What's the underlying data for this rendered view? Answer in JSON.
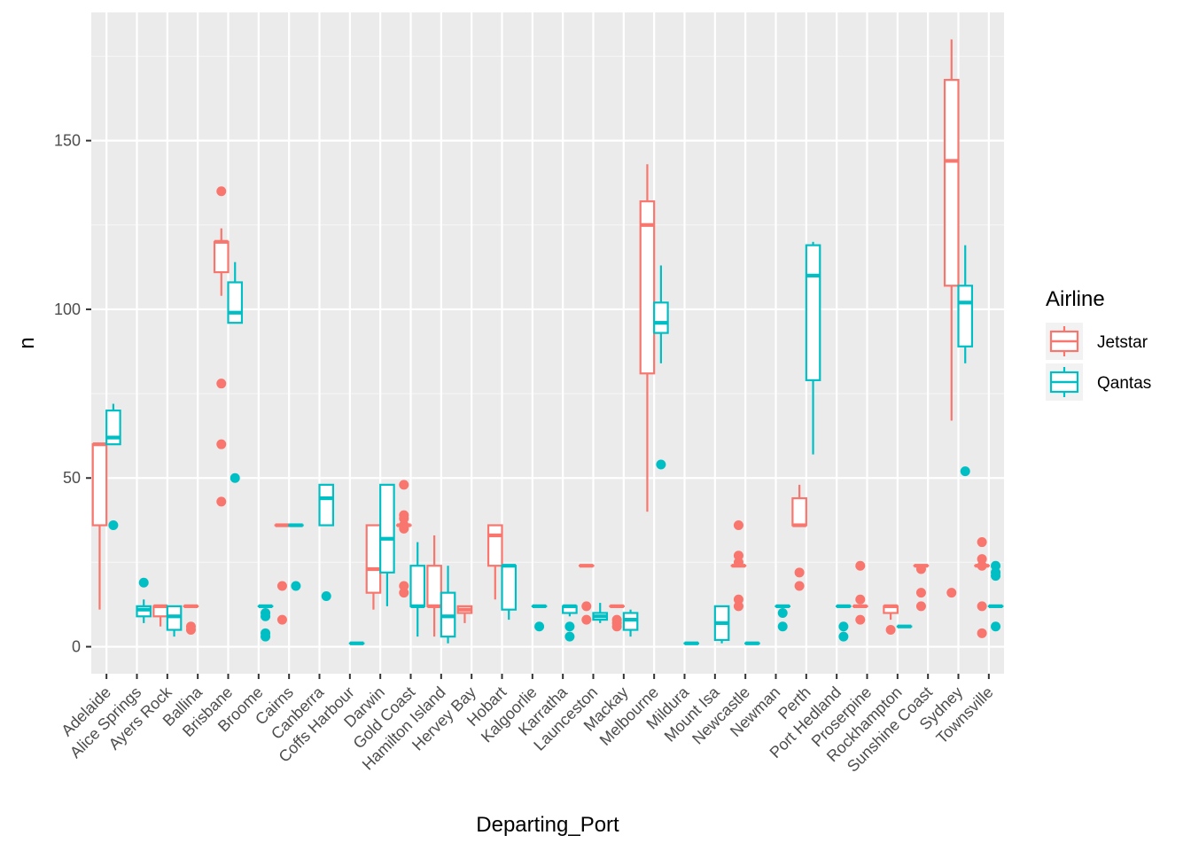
{
  "chart_data": {
    "type": "boxplot",
    "xlabel": "Departing_Port",
    "ylabel": "n",
    "ylim": [
      -8,
      188
    ],
    "yticks": [
      0,
      50,
      100,
      150
    ],
    "grid": true,
    "legend": {
      "title": "Airline",
      "position": "right",
      "entries": [
        {
          "name": "Jetstar",
          "color": "#F8766D"
        },
        {
          "name": "Qantas",
          "color": "#00BFC4"
        }
      ]
    },
    "categories": [
      "Adelaide",
      "Alice Springs",
      "Ayers Rock",
      "Ballina",
      "Brisbane",
      "Broome",
      "Cairns",
      "Canberra",
      "Coffs Harbour",
      "Darwin",
      "Gold Coast",
      "Hamilton Island",
      "Hervey Bay",
      "Hobart",
      "Kalgoorlie",
      "Karratha",
      "Launceston",
      "Mackay",
      "Melbourne",
      "Mildura",
      "Mount Isa",
      "Newcastle",
      "Newman",
      "Perth",
      "Port Hedland",
      "Proserpine",
      "Rockhampton",
      "Sunshine Coast",
      "Sydney",
      "Townsville"
    ],
    "series": [
      {
        "name": "Jetstar",
        "color": "#F8766D",
        "boxes": [
          {
            "category": "Adelaide",
            "low": 11,
            "q1": 36,
            "median": 60,
            "q3": 60,
            "high": 60,
            "outliers": []
          },
          {
            "category": "Ayers Rock",
            "low": 6,
            "q1": 9,
            "median": 12,
            "q3": 12,
            "high": 12,
            "outliers": []
          },
          {
            "category": "Ballina",
            "low": 12,
            "q1": 12,
            "median": 12,
            "q3": 12,
            "high": 12,
            "outliers": [
              6,
              5
            ]
          },
          {
            "category": "Brisbane",
            "low": 104,
            "q1": 111,
            "median": 120,
            "q3": 120,
            "high": 124,
            "outliers": [
              135,
              78,
              60,
              43
            ]
          },
          {
            "category": "Cairns",
            "low": 36,
            "q1": 36,
            "median": 36,
            "q3": 36,
            "high": 36,
            "outliers": [
              18,
              8
            ]
          },
          {
            "category": "Darwin",
            "low": 11,
            "q1": 16,
            "median": 23,
            "q3": 36,
            "high": 36,
            "outliers": []
          },
          {
            "category": "Gold Coast",
            "low": 36,
            "q1": 36,
            "median": 36,
            "q3": 36,
            "high": 36,
            "outliers": [
              48,
              39,
              38,
              36,
              35,
              18,
              16
            ]
          },
          {
            "category": "Hamilton Island",
            "low": 3,
            "q1": 12,
            "median": 12,
            "q3": 24,
            "high": 33,
            "outliers": []
          },
          {
            "category": "Hervey Bay",
            "low": 7,
            "q1": 10,
            "median": 11,
            "q3": 12,
            "high": 12,
            "outliers": []
          },
          {
            "category": "Hobart",
            "low": 14,
            "q1": 24,
            "median": 33,
            "q3": 36,
            "high": 36,
            "outliers": []
          },
          {
            "category": "Launceston",
            "low": 24,
            "q1": 24,
            "median": 24,
            "q3": 24,
            "high": 24,
            "outliers": [
              12,
              8
            ]
          },
          {
            "category": "Mackay",
            "low": 12,
            "q1": 12,
            "median": 12,
            "q3": 12,
            "high": 12,
            "outliers": [
              8,
              7,
              6
            ]
          },
          {
            "category": "Melbourne",
            "low": 40,
            "q1": 81,
            "median": 125,
            "q3": 132,
            "high": 143,
            "outliers": []
          },
          {
            "category": "Newcastle",
            "low": 24,
            "q1": 24,
            "median": 24,
            "q3": 24,
            "high": 24,
            "outliers": [
              36,
              27,
              25,
              14,
              12
            ]
          },
          {
            "category": "Perth",
            "low": 36,
            "q1": 36,
            "median": 36,
            "q3": 44,
            "high": 48,
            "outliers": [
              22,
              18
            ]
          },
          {
            "category": "Proserpine",
            "low": 12,
            "q1": 12,
            "median": 12,
            "q3": 12,
            "high": 12,
            "outliers": [
              24,
              14,
              8
            ]
          },
          {
            "category": "Rockhampton",
            "low": 8,
            "q1": 10,
            "median": 12,
            "q3": 12,
            "high": 12,
            "outliers": [
              5
            ]
          },
          {
            "category": "Sunshine Coast",
            "low": 24,
            "q1": 24,
            "median": 24,
            "q3": 24,
            "high": 24,
            "outliers": [
              23,
              16,
              12
            ]
          },
          {
            "category": "Sydney",
            "low": 67,
            "q1": 107,
            "median": 144,
            "q3": 168,
            "high": 180,
            "outliers": [
              16
            ]
          },
          {
            "category": "Townsville",
            "low": 24,
            "q1": 24,
            "median": 24,
            "q3": 24,
            "high": 24,
            "outliers": [
              31,
              26,
              24,
              12,
              4
            ]
          }
        ]
      },
      {
        "name": "Qantas",
        "color": "#00BFC4",
        "boxes": [
          {
            "category": "Adelaide",
            "low": 60,
            "q1": 60,
            "median": 62,
            "q3": 70,
            "high": 72,
            "outliers": [
              36
            ]
          },
          {
            "category": "Alice Springs",
            "low": 7,
            "q1": 9,
            "median": 11,
            "q3": 12,
            "high": 14,
            "outliers": [
              19
            ]
          },
          {
            "category": "Ayers Rock",
            "low": 3,
            "q1": 5,
            "median": 9,
            "q3": 12,
            "high": 12,
            "outliers": []
          },
          {
            "category": "Brisbane",
            "low": 96,
            "q1": 96,
            "median": 99,
            "q3": 108,
            "high": 114,
            "outliers": [
              50
            ]
          },
          {
            "category": "Broome",
            "low": 12,
            "q1": 12,
            "median": 12,
            "q3": 12,
            "high": 12,
            "outliers": [
              10,
              9,
              4,
              3
            ]
          },
          {
            "category": "Cairns",
            "low": 36,
            "q1": 36,
            "median": 36,
            "q3": 36,
            "high": 36,
            "outliers": [
              18
            ]
          },
          {
            "category": "Canberra",
            "low": 36,
            "q1": 36,
            "median": 44,
            "q3": 48,
            "high": 48,
            "outliers": [
              15
            ]
          },
          {
            "category": "Coffs Harbour",
            "low": 1,
            "q1": 1,
            "median": 1,
            "q3": 1,
            "high": 1,
            "outliers": []
          },
          {
            "category": "Darwin",
            "low": 12,
            "q1": 22,
            "median": 32,
            "q3": 48,
            "high": 48,
            "outliers": []
          },
          {
            "category": "Gold Coast",
            "low": 3,
            "q1": 12,
            "median": 12,
            "q3": 24,
            "high": 31,
            "outliers": []
          },
          {
            "category": "Hamilton Island",
            "low": 1,
            "q1": 3,
            "median": 9,
            "q3": 16,
            "high": 24,
            "outliers": []
          },
          {
            "category": "Hobart",
            "low": 8,
            "q1": 11,
            "median": 24,
            "q3": 24,
            "high": 24,
            "outliers": []
          },
          {
            "category": "Kalgoorlie",
            "low": 12,
            "q1": 12,
            "median": 12,
            "q3": 12,
            "high": 12,
            "outliers": [
              6
            ]
          },
          {
            "category": "Karratha",
            "low": 9,
            "q1": 10,
            "median": 12,
            "q3": 12,
            "high": 12,
            "outliers": [
              6,
              3
            ]
          },
          {
            "category": "Launceston",
            "low": 7,
            "q1": 8,
            "median": 9,
            "q3": 10,
            "high": 13,
            "outliers": []
          },
          {
            "category": "Mackay",
            "low": 3,
            "q1": 5,
            "median": 8,
            "q3": 10,
            "high": 11,
            "outliers": []
          },
          {
            "category": "Melbourne",
            "low": 84,
            "q1": 93,
            "median": 96,
            "q3": 102,
            "high": 113,
            "outliers": [
              54
            ]
          },
          {
            "category": "Mildura",
            "low": 1,
            "q1": 1,
            "median": 1,
            "q3": 1,
            "high": 1,
            "outliers": []
          },
          {
            "category": "Mount Isa",
            "low": 1,
            "q1": 2,
            "median": 7,
            "q3": 12,
            "high": 12,
            "outliers": []
          },
          {
            "category": "Newcastle",
            "low": 1,
            "q1": 1,
            "median": 1,
            "q3": 1,
            "high": 1,
            "outliers": []
          },
          {
            "category": "Newman",
            "low": 12,
            "q1": 12,
            "median": 12,
            "q3": 12,
            "high": 12,
            "outliers": [
              10,
              6
            ]
          },
          {
            "category": "Perth",
            "low": 57,
            "q1": 79,
            "median": 110,
            "q3": 119,
            "high": 120,
            "outliers": []
          },
          {
            "category": "Port Hedland",
            "low": 12,
            "q1": 12,
            "median": 12,
            "q3": 12,
            "high": 12,
            "outliers": [
              6,
              3
            ]
          },
          {
            "category": "Rockhampton",
            "low": 6,
            "q1": 6,
            "median": 6,
            "q3": 6,
            "high": 6,
            "outliers": []
          },
          {
            "category": "Sydney",
            "low": 84,
            "q1": 89,
            "median": 102,
            "q3": 107,
            "high": 119,
            "outliers": [
              52
            ]
          },
          {
            "category": "Townsville",
            "low": 12,
            "q1": 12,
            "median": 12,
            "q3": 12,
            "high": 12,
            "outliers": [
              24,
              22,
              21,
              6
            ]
          }
        ]
      }
    ]
  }
}
